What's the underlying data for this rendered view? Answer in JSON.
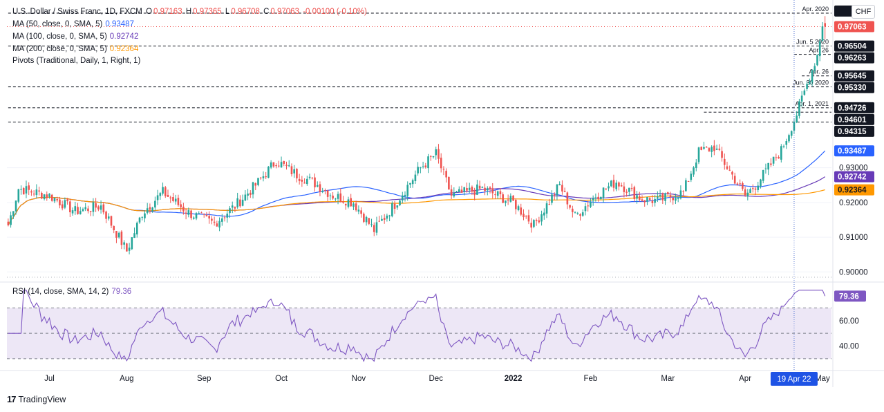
{
  "header": {
    "symbol_title": "U.S. Dollar / Swiss Franc, 1D, FXCM",
    "ohlc": {
      "o_label": "O",
      "o": "0.97163",
      "h_label": "H",
      "h": "0.97365",
      "l_label": "L",
      "l": "0.96708",
      "c_label": "C",
      "c": "0.97063",
      "change": "-0.00100 (-0.10%)"
    },
    "ma50": {
      "label": "MA (50, close, 0, SMA, 5)",
      "value": "0.93487",
      "color": "#2962ff"
    },
    "ma100": {
      "label": "MA (100, close, 0, SMA, 5)",
      "value": "0.92742",
      "color": "#673ab7"
    },
    "ma200": {
      "label": "MA (200, close, 0, SMA, 5)",
      "value": "0.92364",
      "color": "#ff9800"
    },
    "pivots": {
      "label": "Pivots (Traditional, Daily, 1, Right, 1)"
    }
  },
  "currency_button": "CHF",
  "watermark": "TradingView",
  "colors": {
    "up": "#26a69a",
    "down": "#ef5350",
    "rsi": "#7e57c2",
    "rsi_band": "#ede7f6",
    "crosshair": "#5b7bd5"
  },
  "chart_data": {
    "type": "candlestick",
    "y_axis_ticks": [
      0.93,
      0.92,
      0.91,
      0.9
    ],
    "y_axis_tick_labels": [
      "0.93000",
      "0.92000",
      "0.91000",
      "0.90000"
    ],
    "ylim": [
      0.8975,
      0.9755
    ],
    "x_axis_labels": [
      {
        "label": "Jul",
        "bar": 16
      },
      {
        "label": "Aug",
        "bar": 46
      },
      {
        "label": "Sep",
        "bar": 76
      },
      {
        "label": "Oct",
        "bar": 106
      },
      {
        "label": "Nov",
        "bar": 136
      },
      {
        "label": "Dec",
        "bar": 166
      },
      {
        "label": "2022",
        "bar": 196
      },
      {
        "label": "Feb",
        "bar": 226
      },
      {
        "label": "Mar",
        "bar": 256
      },
      {
        "label": "Apr",
        "bar": 286
      },
      {
        "label": "May",
        "bar": 316
      }
    ],
    "crosshair": {
      "label": "19 Apr 22",
      "bar": 305
    },
    "price_labels": [
      {
        "value": 0.97063,
        "text": "0.97063",
        "type": "last"
      },
      {
        "value": 0.96504,
        "text": "0.96504",
        "type": "level"
      },
      {
        "value": 0.96263,
        "text": "0.96263",
        "type": "level"
      },
      {
        "value": 0.95645,
        "text": "0.95645",
        "type": "level"
      },
      {
        "value": 0.9533,
        "text": "0.95330",
        "type": "level"
      },
      {
        "value": 0.94726,
        "text": "0.94726",
        "type": "level"
      },
      {
        "value": 0.94601,
        "text": "0.94601",
        "type": "level"
      },
      {
        "value": 0.94315,
        "text": "0.94315",
        "type": "level"
      },
      {
        "value": 0.93487,
        "text": "0.93487",
        "type": "ma50"
      },
      {
        "value": 0.92742,
        "text": "0.92742",
        "type": "ma100"
      },
      {
        "value": 0.92364,
        "text": "0.92364",
        "type": "ma200"
      }
    ],
    "levels": [
      {
        "value": 0.9745,
        "note": "Apr. 2020",
        "start_bar": 0
      },
      {
        "value": 0.96504,
        "note": "Jun. 5 2020",
        "start_bar": 0
      },
      {
        "value": 0.96263,
        "note": "Apr. 26",
        "start_bar": 305
      },
      {
        "value": 0.95645,
        "note": "Apr. 26",
        "start_bar": 308
      },
      {
        "value": 0.9533,
        "note": "Jun. 30 2020",
        "start_bar": 0
      },
      {
        "value": 0.94726,
        "note": "Apr. 1, 2021",
        "start_bar": 0
      },
      {
        "value": 0.94601,
        "note": "",
        "start_bar": 270
      },
      {
        "value": 0.94315,
        "note": "",
        "start_bar": 0
      }
    ],
    "rsi": {
      "label": "RSI (14, close, SMA, 14, 2)",
      "value": "79.36",
      "levels": [
        70,
        50,
        30
      ],
      "ticks": [
        60,
        40
      ],
      "tick_labels": [
        "60.00",
        "40.00"
      ],
      "ylim": [
        25,
        85
      ]
    }
  }
}
